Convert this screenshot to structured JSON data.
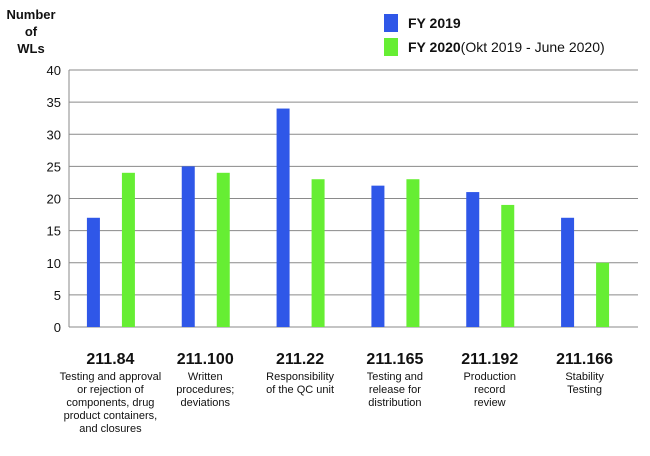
{
  "chart_data": {
    "type": "bar",
    "ylabel": "Number\nof\nWLs",
    "ylim": [
      0,
      40
    ],
    "yticks": [
      0,
      5,
      10,
      15,
      20,
      25,
      30,
      35,
      40
    ],
    "grid": true,
    "legend_position": "top-right",
    "categories": [
      {
        "code": "211.84",
        "description": "Testing and approval\nor rejection of\ncomponents, drug\nproduct containers,\nand closures"
      },
      {
        "code": "211.100",
        "description": "Written\nprocedures;\ndeviations"
      },
      {
        "code": "211.22",
        "description": "Responsibility\nof the  QC unit"
      },
      {
        "code": "211.165",
        "description": "Testing and\nrelease for\ndistribution"
      },
      {
        "code": "211.192",
        "description": "Production\nrecord\nreview"
      },
      {
        "code": "211.166",
        "description": "Stability\nTesting"
      }
    ],
    "series": [
      {
        "name": "FY 2019",
        "name_detail": "",
        "color": "#2f57e8",
        "values": [
          17,
          25,
          34,
          22,
          21,
          17
        ]
      },
      {
        "name": "FY 2020",
        "name_detail": " (Okt 2019 - June 2020)",
        "color": "#66ee33",
        "values": [
          24,
          24,
          23,
          23,
          19,
          10
        ]
      }
    ]
  }
}
